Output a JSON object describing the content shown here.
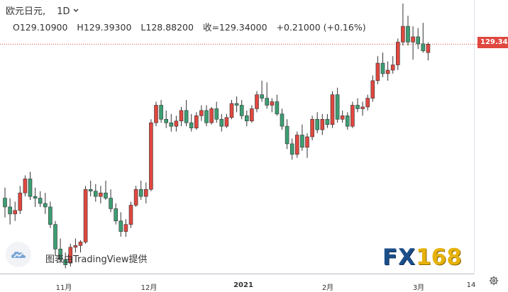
{
  "header": {
    "symbol": "欧元日元,",
    "timeframe": "1D"
  },
  "ohlc": {
    "open": "O129.10900",
    "high": "H129.39300",
    "low": "L128.88200",
    "close": "收=129.34000",
    "change": "+0.21000 (+0.16%)"
  },
  "last_price_label": "129.34",
  "colors": {
    "up": "#e0473f",
    "down": "#3c9e73",
    "price_line": "#e0473f"
  },
  "attribution": {
    "text": "图表由TradingView提供"
  },
  "watermark": {
    "fx": "FX",
    "num": "168"
  },
  "icons": {
    "tradingview": "cloud-icon",
    "settings": "gear-icon",
    "timeframe_menu": "chevron-down-icon"
  },
  "chart_data": {
    "type": "candlestick",
    "ylim": [
      122.8,
      130.6
    ],
    "x_tick_labels": [
      {
        "label": "11月",
        "bold": false
      },
      {
        "label": "12月",
        "bold": false
      },
      {
        "label": "2021",
        "bold": true
      },
      {
        "label": "2月",
        "bold": false
      },
      {
        "label": "3月",
        "bold": false
      },
      {
        "label": "14",
        "bold": false
      }
    ],
    "candles": [
      [
        124.95,
        125.25,
        124.4,
        124.7
      ],
      [
        124.7,
        124.95,
        124.2,
        124.5
      ],
      [
        124.5,
        124.85,
        124.3,
        124.6
      ],
      [
        124.6,
        125.3,
        124.5,
        125.1
      ],
      [
        125.1,
        125.6,
        125.0,
        125.5
      ],
      [
        125.5,
        125.7,
        124.9,
        125.0
      ],
      [
        125.0,
        125.25,
        124.7,
        124.95
      ],
      [
        124.95,
        125.15,
        124.7,
        124.8
      ],
      [
        124.8,
        125.1,
        124.5,
        124.7
      ],
      [
        124.7,
        124.85,
        124.1,
        124.2
      ],
      [
        124.2,
        124.3,
        123.3,
        123.5
      ],
      [
        123.5,
        123.8,
        123.1,
        123.2
      ],
      [
        123.2,
        123.4,
        122.95,
        123.05
      ],
      [
        123.1,
        123.65,
        123.0,
        123.55
      ],
      [
        123.55,
        123.8,
        123.4,
        123.6
      ],
      [
        123.6,
        123.75,
        123.4,
        123.7
      ],
      [
        123.7,
        125.3,
        123.65,
        125.2
      ],
      [
        125.2,
        125.45,
        125.0,
        125.15
      ],
      [
        125.15,
        125.35,
        124.85,
        125.0
      ],
      [
        125.0,
        125.3,
        124.8,
        125.1
      ],
      [
        125.1,
        125.45,
        124.9,
        124.95
      ],
      [
        124.95,
        125.2,
        124.55,
        124.65
      ],
      [
        124.65,
        124.8,
        124.2,
        124.3
      ],
      [
        124.3,
        124.55,
        123.85,
        124.0
      ],
      [
        124.0,
        124.35,
        123.85,
        124.2
      ],
      [
        124.2,
        124.85,
        124.1,
        124.75
      ],
      [
        124.75,
        125.3,
        124.7,
        125.2
      ],
      [
        125.2,
        125.45,
        124.9,
        125.0
      ],
      [
        125.0,
        125.4,
        124.8,
        125.2
      ],
      [
        125.2,
        127.2,
        125.15,
        127.1
      ],
      [
        127.1,
        127.7,
        127.0,
        127.6
      ],
      [
        127.6,
        127.75,
        127.1,
        127.2
      ],
      [
        127.2,
        127.45,
        126.95,
        127.1
      ],
      [
        127.1,
        127.35,
        126.85,
        127.0
      ],
      [
        127.0,
        127.3,
        126.85,
        127.15
      ],
      [
        127.15,
        127.55,
        127.0,
        127.45
      ],
      [
        127.45,
        127.75,
        127.0,
        127.1
      ],
      [
        127.1,
        127.35,
        126.85,
        126.95
      ],
      [
        126.95,
        127.4,
        126.9,
        127.3
      ],
      [
        127.3,
        127.6,
        127.15,
        127.45
      ],
      [
        127.45,
        127.6,
        127.0,
        127.1
      ],
      [
        127.1,
        127.55,
        127.05,
        127.5
      ],
      [
        127.5,
        127.7,
        127.1,
        127.2
      ],
      [
        127.2,
        127.35,
        126.85,
        127.0
      ],
      [
        127.0,
        127.35,
        126.95,
        127.25
      ],
      [
        127.25,
        127.75,
        127.2,
        127.65
      ],
      [
        127.65,
        127.85,
        127.4,
        127.6
      ],
      [
        127.6,
        127.75,
        127.2,
        127.3
      ],
      [
        127.3,
        127.45,
        127.0,
        127.15
      ],
      [
        127.15,
        127.6,
        127.1,
        127.5
      ],
      [
        127.5,
        128.0,
        127.4,
        127.9
      ],
      [
        127.9,
        128.3,
        127.7,
        127.8
      ],
      [
        127.8,
        128.25,
        127.5,
        127.6
      ],
      [
        127.6,
        127.8,
        127.4,
        127.7
      ],
      [
        127.7,
        127.9,
        127.3,
        127.35
      ],
      [
        127.35,
        127.5,
        126.9,
        127.0
      ],
      [
        127.0,
        127.2,
        126.35,
        126.5
      ],
      [
        126.5,
        126.65,
        126.05,
        126.2
      ],
      [
        126.2,
        126.85,
        126.1,
        126.75
      ],
      [
        126.75,
        127.05,
        126.3,
        126.4
      ],
      [
        126.4,
        126.8,
        126.1,
        126.7
      ],
      [
        126.7,
        127.3,
        126.6,
        127.2
      ],
      [
        127.2,
        127.4,
        126.8,
        126.9
      ],
      [
        126.9,
        127.35,
        126.75,
        127.2
      ],
      [
        127.2,
        127.35,
        126.95,
        127.05
      ],
      [
        127.05,
        128.0,
        126.95,
        127.9
      ],
      [
        127.9,
        128.1,
        127.1,
        127.2
      ],
      [
        127.2,
        127.45,
        127.1,
        127.3
      ],
      [
        127.3,
        127.4,
        126.9,
        127.0
      ],
      [
        127.0,
        127.7,
        126.95,
        127.6
      ],
      [
        127.6,
        127.8,
        127.4,
        127.5
      ],
      [
        127.5,
        127.7,
        127.3,
        127.55
      ],
      [
        127.55,
        127.9,
        127.45,
        127.8
      ],
      [
        127.8,
        128.45,
        127.7,
        128.3
      ],
      [
        128.3,
        129.0,
        128.2,
        128.8
      ],
      [
        128.8,
        129.1,
        128.4,
        128.5
      ],
      [
        128.5,
        128.85,
        128.3,
        128.6
      ],
      [
        128.6,
        129.0,
        128.5,
        128.75
      ],
      [
        128.75,
        129.5,
        128.6,
        129.4
      ],
      [
        129.4,
        130.5,
        129.3,
        129.85
      ],
      [
        129.85,
        130.15,
        129.3,
        129.4
      ],
      [
        129.4,
        129.85,
        128.9,
        129.55
      ],
      [
        129.55,
        129.8,
        129.2,
        129.35
      ],
      [
        129.35,
        129.95,
        129.1,
        129.15
      ],
      [
        129.1,
        129.39,
        128.88,
        129.34
      ]
    ]
  }
}
